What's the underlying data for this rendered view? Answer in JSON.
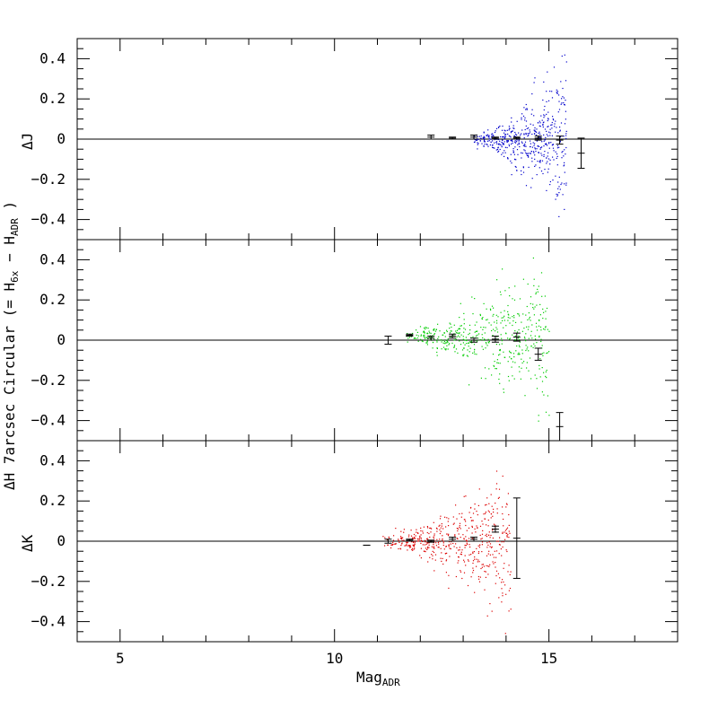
{
  "chart_data": {
    "type": "scatter",
    "xlabel": "Mag",
    "xlabel_sub": "ADR",
    "ylabel_main": "ΔH 7arcsec Circular (= H",
    "ylabel_sub1": "6x",
    "ylabel_mid": " − H",
    "ylabel_sub2": "ADR",
    "ylabel_end": " )",
    "xlim": [
      4,
      18
    ],
    "x_ticks": [
      5,
      10,
      15
    ],
    "grid": false,
    "panels": [
      {
        "ylabel": "ΔJ",
        "color": "#0000cc",
        "ylim": [
          -0.5,
          0.5
        ],
        "y_ticks": [
          0.4,
          0.2,
          0,
          -0.2,
          -0.4
        ],
        "y_tick_labels": [
          "0.4",
          "0.2",
          "0",
          "−0.2",
          "−0.4"
        ],
        "scatter_range": [
          13.2,
          15.4
        ],
        "errorbars": [
          {
            "x": 12.25,
            "y": 0.01,
            "err": 0.01
          },
          {
            "x": 12.75,
            "y": 0.005,
            "err": 0.005
          },
          {
            "x": 13.25,
            "y": 0.01,
            "err": 0.01
          },
          {
            "x": 13.75,
            "y": 0.005,
            "err": 0.005
          },
          {
            "x": 14.25,
            "y": 0.005,
            "err": 0.005
          },
          {
            "x": 14.75,
            "y": 0.005,
            "err": 0.01
          },
          {
            "x": 15.25,
            "y": -0.005,
            "err": 0.02
          },
          {
            "x": 15.75,
            "y": -0.07,
            "err": 0.075
          }
        ]
      },
      {
        "ylabel": "",
        "color": "#00cc00",
        "ylim": [
          -0.5,
          0.5
        ],
        "y_ticks": [
          0.4,
          0.2,
          0,
          -0.2,
          -0.4
        ],
        "y_tick_labels": [
          "0.4",
          "0.2",
          "0",
          "−0.2",
          "−0.4"
        ],
        "scatter_range": [
          11.6,
          15.0
        ],
        "errorbars": [
          {
            "x": 11.25,
            "y": 0.0,
            "err": 0.02
          },
          {
            "x": 11.75,
            "y": 0.025,
            "err": 0.005
          },
          {
            "x": 12.25,
            "y": 0.01,
            "err": 0.01
          },
          {
            "x": 12.75,
            "y": 0.02,
            "err": 0.01
          },
          {
            "x": 13.25,
            "y": 0.0,
            "err": 0.01
          },
          {
            "x": 13.75,
            "y": 0.005,
            "err": 0.015
          },
          {
            "x": 14.25,
            "y": 0.015,
            "err": 0.02
          },
          {
            "x": 14.75,
            "y": -0.07,
            "err": 0.03
          },
          {
            "x": 15.25,
            "y": -0.43,
            "err": 0.07
          }
        ]
      },
      {
        "ylabel": "ΔK",
        "color": "#dd0000",
        "ylim": [
          -0.5,
          0.5
        ],
        "y_ticks": [
          0.4,
          0.2,
          0,
          -0.2,
          -0.4
        ],
        "y_tick_labels": [
          "0.4",
          "0.2",
          "0",
          "−0.2",
          "−0.4"
        ],
        "scatter_range": [
          11.1,
          14.1
        ],
        "errorbars": [
          {
            "x": 10.75,
            "y": -0.02,
            "err": 0.0
          },
          {
            "x": 11.25,
            "y": 0.0,
            "err": 0.01
          },
          {
            "x": 11.75,
            "y": 0.005,
            "err": 0.005
          },
          {
            "x": 12.25,
            "y": 0.0,
            "err": 0.005
          },
          {
            "x": 12.75,
            "y": 0.01,
            "err": 0.01
          },
          {
            "x": 13.25,
            "y": 0.01,
            "err": 0.01
          },
          {
            "x": 13.75,
            "y": 0.06,
            "err": 0.015
          },
          {
            "x": 14.25,
            "y": 0.015,
            "err": 0.2
          }
        ]
      }
    ]
  }
}
